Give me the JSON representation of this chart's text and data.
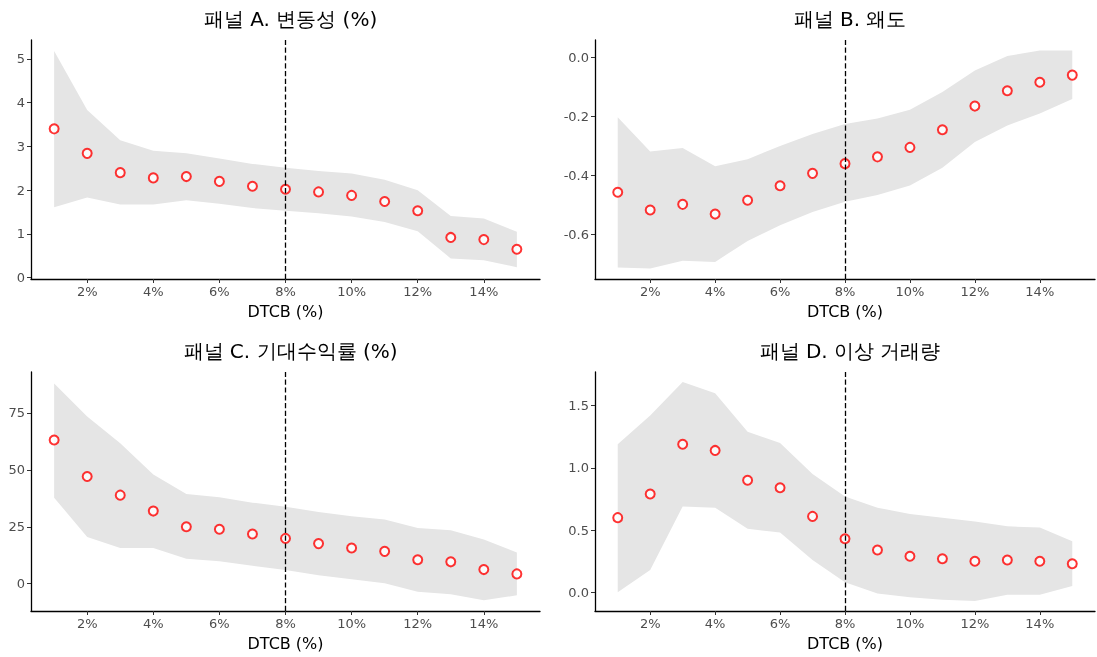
{
  "chart_data": [
    {
      "type": "scatter",
      "title": "패널 A. 변동성 (%)",
      "xlabel": "DTCB (%)",
      "x": [
        1,
        2,
        3,
        4,
        5,
        6,
        7,
        8,
        9,
        10,
        11,
        12,
        13,
        14,
        15
      ],
      "xlim": [
        0.3,
        15.7
      ],
      "xticks": [
        {
          "value": 2,
          "label": "2%"
        },
        {
          "value": 4,
          "label": "4%"
        },
        {
          "value": 6,
          "label": "6%"
        },
        {
          "value": 8,
          "label": "8%"
        },
        {
          "value": 10,
          "label": "10%"
        },
        {
          "value": 12,
          "label": "12%"
        },
        {
          "value": 14,
          "label": "14%"
        }
      ],
      "ylim": [
        -0.03,
        5.43
      ],
      "yticks": [
        0,
        1,
        2,
        3,
        4,
        5
      ],
      "marker": "circle",
      "grid": false,
      "ref_lines": [
        {
          "axis": "x",
          "value": 8,
          "line_style": "dashed",
          "color": "#000000"
        }
      ],
      "series": [
        {
          "color": "#ff0000",
          "values": [
            3.4,
            2.84,
            2.4,
            2.28,
            2.31,
            2.2,
            2.09,
            2.02,
            1.96,
            1.88,
            1.74,
            1.53,
            0.92,
            0.87,
            0.65
          ],
          "lower": [
            1.61,
            1.83,
            1.67,
            1.67,
            1.77,
            1.69,
            1.59,
            1.53,
            1.47,
            1.4,
            1.27,
            1.06,
            0.44,
            0.4,
            0.24
          ],
          "upper": [
            5.18,
            3.83,
            3.14,
            2.9,
            2.84,
            2.72,
            2.6,
            2.51,
            2.44,
            2.38,
            2.24,
            2.0,
            1.41,
            1.35,
            1.05
          ]
        }
      ]
    },
    {
      "type": "scatter",
      "title": "패널 B. 왜도",
      "xlabel": "DTCB (%)",
      "x": [
        1,
        2,
        3,
        4,
        5,
        6,
        7,
        8,
        9,
        10,
        11,
        12,
        13,
        14,
        15
      ],
      "xlim": [
        0.3,
        15.7
      ],
      "xticks": [
        {
          "value": 2,
          "label": "2%"
        },
        {
          "value": 4,
          "label": "4%"
        },
        {
          "value": 6,
          "label": "6%"
        },
        {
          "value": 8,
          "label": "8%"
        },
        {
          "value": 10,
          "label": "10%"
        },
        {
          "value": 12,
          "label": "12%"
        },
        {
          "value": 14,
          "label": "14%"
        }
      ],
      "ylim": [
        -0.75,
        0.06
      ],
      "yticks": [
        {
          "value": -0.6,
          "label": "-0.6"
        },
        {
          "value": -0.4,
          "label": "-0.4"
        },
        {
          "value": -0.2,
          "label": "-0.2"
        },
        {
          "value": 0,
          "label": "0.0"
        }
      ],
      "marker": "circle",
      "grid": false,
      "ref_lines": [
        {
          "axis": "x",
          "value": 8,
          "line_style": "dashed",
          "color": "#000000"
        }
      ],
      "series": [
        {
          "color": "#ff0000",
          "values": [
            -0.456,
            -0.516,
            -0.497,
            -0.53,
            -0.483,
            -0.434,
            -0.392,
            -0.359,
            -0.336,
            -0.304,
            -0.244,
            -0.164,
            -0.112,
            -0.083,
            -0.059
          ],
          "lower": [
            -0.711,
            -0.714,
            -0.688,
            -0.692,
            -0.621,
            -0.568,
            -0.523,
            -0.488,
            -0.465,
            -0.433,
            -0.373,
            -0.286,
            -0.23,
            -0.189,
            -0.14
          ],
          "upper": [
            -0.202,
            -0.318,
            -0.306,
            -0.368,
            -0.344,
            -0.299,
            -0.259,
            -0.225,
            -0.206,
            -0.176,
            -0.116,
            -0.043,
            0.006,
            0.024,
            0.024
          ]
        }
      ]
    },
    {
      "type": "scatter",
      "title": "패널 C. 기대수익률 (%)",
      "xlabel": "DTCB (%)",
      "x": [
        1,
        2,
        3,
        4,
        5,
        6,
        7,
        8,
        9,
        10,
        11,
        12,
        13,
        14,
        15
      ],
      "xlim": [
        0.3,
        15.7
      ],
      "xticks": [
        {
          "value": 2,
          "label": "2%"
        },
        {
          "value": 4,
          "label": "4%"
        },
        {
          "value": 6,
          "label": "6%"
        },
        {
          "value": 8,
          "label": "8%"
        },
        {
          "value": 10,
          "label": "10%"
        },
        {
          "value": 12,
          "label": "12%"
        },
        {
          "value": 14,
          "label": "14%"
        }
      ],
      "ylim": [
        -12,
        93
      ],
      "yticks": [
        0,
        25,
        50,
        75
      ],
      "marker": "circle",
      "grid": false,
      "ref_lines": [
        {
          "axis": "x",
          "value": 8,
          "line_style": "dashed",
          "color": "#000000"
        }
      ],
      "series": [
        {
          "color": "#ff0000",
          "values": [
            63.1,
            47.1,
            38.9,
            31.9,
            25.0,
            23.9,
            21.8,
            19.9,
            17.6,
            15.7,
            14.2,
            10.5,
            9.6,
            6.2,
            4.3
          ],
          "lower": [
            37.8,
            20.5,
            15.7,
            15.7,
            11.0,
            9.9,
            7.9,
            6.0,
            3.7,
            1.9,
            0.2,
            -3.5,
            -4.6,
            -7.3,
            -5.1
          ],
          "upper": [
            88.0,
            73.5,
            61.7,
            48.0,
            39.4,
            38.0,
            35.6,
            33.8,
            31.5,
            29.6,
            28.2,
            24.5,
            23.5,
            19.4,
            13.7
          ]
        }
      ]
    },
    {
      "type": "scatter",
      "title": "패널 D. 이상 거래량",
      "xlabel": "DTCB (%)",
      "x": [
        1,
        2,
        3,
        4,
        5,
        6,
        7,
        8,
        9,
        10,
        11,
        12,
        13,
        14,
        15
      ],
      "xlim": [
        0.3,
        15.7
      ],
      "xticks": [
        {
          "value": 2,
          "label": "2%"
        },
        {
          "value": 4,
          "label": "4%"
        },
        {
          "value": 6,
          "label": "6%"
        },
        {
          "value": 8,
          "label": "8%"
        },
        {
          "value": 10,
          "label": "10%"
        },
        {
          "value": 12,
          "label": "12%"
        },
        {
          "value": 14,
          "label": "14%"
        }
      ],
      "ylim": [
        -0.15,
        1.77
      ],
      "yticks": [
        {
          "value": 0,
          "label": "0.0"
        },
        {
          "value": 0.5,
          "label": "0.5"
        },
        {
          "value": 1,
          "label": "1.0"
        },
        {
          "value": 1.5,
          "label": "1.5"
        }
      ],
      "marker": "circle",
      "grid": false,
      "ref_lines": [
        {
          "axis": "x",
          "value": 8,
          "line_style": "dashed",
          "color": "#000000"
        }
      ],
      "series": [
        {
          "color": "#ff0000",
          "values": [
            0.6,
            0.79,
            1.19,
            1.14,
            0.9,
            0.84,
            0.61,
            0.43,
            0.34,
            0.29,
            0.27,
            0.25,
            0.26,
            0.25,
            0.23
          ],
          "lower": [
            0.0,
            0.18,
            0.69,
            0.68,
            0.51,
            0.48,
            0.26,
            0.08,
            -0.01,
            -0.04,
            -0.06,
            -0.07,
            -0.02,
            -0.02,
            0.05
          ],
          "upper": [
            1.19,
            1.42,
            1.69,
            1.6,
            1.29,
            1.2,
            0.95,
            0.77,
            0.68,
            0.63,
            0.6,
            0.57,
            0.53,
            0.52,
            0.41
          ]
        }
      ]
    }
  ]
}
